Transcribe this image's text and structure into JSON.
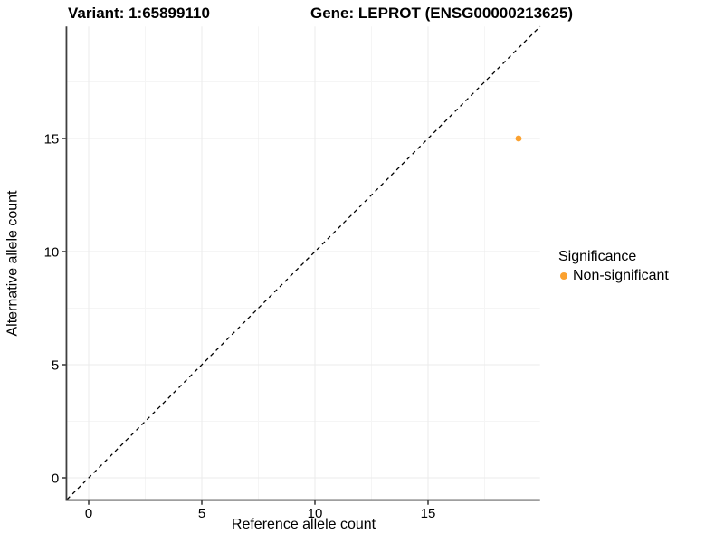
{
  "header": {
    "variant_title": "Variant: 1:65899110",
    "gene_title": "Gene: LEPROT (ENSG00000213625)"
  },
  "axes": {
    "x_label": "Reference allele count",
    "y_label": "Alternative allele count"
  },
  "legend": {
    "title": "Significance",
    "items": [
      {
        "label": "Non-significant",
        "color": "#FBA12F"
      }
    ]
  },
  "colors": {
    "background": "#ffffff",
    "point_orange": "#FBA12F",
    "axis_line": "#3f3f3f",
    "text": "#000000",
    "grid_major": "#ebebeb",
    "grid_minor": "#f5f5f5",
    "identity_line": "#000000"
  },
  "chart_data": {
    "type": "scatter",
    "title": "Variant: 1:65899110 | Gene: LEPROT (ENSG00000213625)",
    "xlabel": "Reference allele count",
    "ylabel": "Alternative allele count",
    "xlim": [
      -0.95,
      19.95
    ],
    "ylim": [
      -0.95,
      19.95
    ],
    "x_ticks": [
      0,
      5,
      10,
      15
    ],
    "y_ticks": [
      0,
      5,
      10,
      15
    ],
    "x_minor_ticks": [
      2.5,
      7.5,
      12.5,
      17.5
    ],
    "y_minor_ticks": [
      2.5,
      7.5,
      12.5,
      17.5
    ],
    "grid": true,
    "legend_position": "right",
    "series": [
      {
        "name": "Non-significant",
        "color": "#FBA12F",
        "point_radius": 3.4,
        "points": [
          {
            "x": 19,
            "y": 15
          }
        ]
      }
    ],
    "reference_line": {
      "type": "identity",
      "slope": 1,
      "intercept": 0,
      "style": "dashed",
      "color": "#000000"
    }
  }
}
